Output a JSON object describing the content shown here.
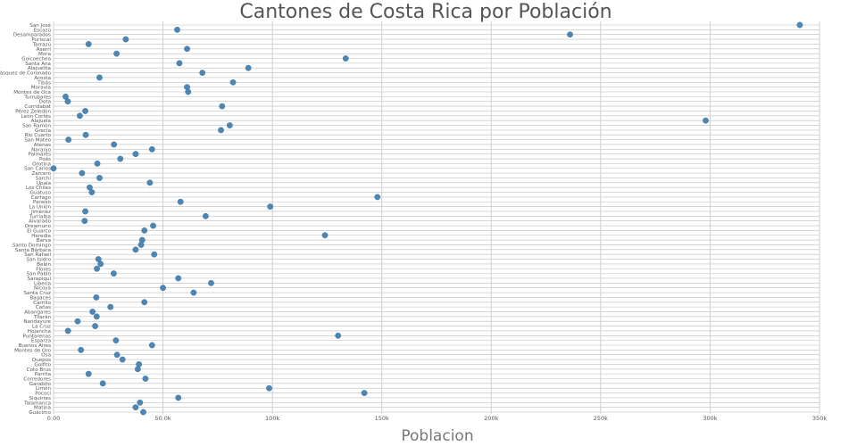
{
  "chart_data": {
    "type": "scatter",
    "title": "Cantones de Costa Rica por Población",
    "xlabel": "Poblacion",
    "ylabel": "",
    "xlim": [
      0,
      350000
    ],
    "x_ticks": [
      0,
      50000,
      100000,
      150000,
      200000,
      250000,
      300000,
      350000
    ],
    "x_tick_labels": [
      "0.00",
      "50.0k",
      "100k",
      "150k",
      "200k",
      "250k",
      "300k",
      "350k"
    ],
    "grid": true,
    "legend": "none",
    "marker_color": "#4d86b4",
    "categories": [
      "San José",
      "Escazú",
      "Desamparados",
      "Puriscal",
      "Tarrazú",
      "Aserrí",
      "Mora",
      "Goicoechea",
      "Santa Ana",
      "Alajuelita",
      "Vásquez de Coronado",
      "Acosta",
      "Tibás",
      "Moravia",
      "Montes de Oca",
      "Turrubares",
      "Dota",
      "Curridabat",
      "Pérez Zeledón",
      "León Cortés",
      "Alajuela",
      "San Ramón",
      "Grecia",
      "Río Cuarto",
      "San Mateo",
      "Atenas",
      "Naranjo",
      "Palmares",
      "Poás",
      "Orotina",
      "San Carlos",
      "Zarcero",
      "Sarchí",
      "Upala",
      "Los Chiles",
      "Guatuso",
      "Cartago",
      "Paraíso",
      "La Unión",
      "Jiménez",
      "Turrialba",
      "Alvarado",
      "Oreamuno",
      "El Guarco",
      "Heredia",
      "Barva",
      "Santo Domingo",
      "Santa Bárbara",
      "San Rafael",
      "San Isidro",
      "Belén",
      "Flores",
      "San Pablo",
      "Sarapiquí",
      "Liberia",
      "Nicoya",
      "Santa Cruz",
      "Bagaces",
      "Carrillo",
      "Cañas",
      "Abangares",
      "Tilarán",
      "Nandayure",
      "La Cruz",
      "Hojancha",
      "Puntarenas",
      "Esparza",
      "Buenos Aires",
      "Montes de Oro",
      "Osa",
      "Quepos",
      "Golfito",
      "Coto Brus",
      "Parrita",
      "Corredores",
      "Garabito",
      "Limón",
      "Pococí",
      "Siquirres",
      "Talamanca",
      "Matina",
      "Guácimo"
    ],
    "values": [
      341000,
      56500,
      236000,
      33000,
      16000,
      61000,
      28800,
      133500,
      57500,
      89000,
      68000,
      21000,
      82000,
      61000,
      61500,
      5500,
      6500,
      77000,
      14500,
      12000,
      298000,
      80500,
      76500,
      14700,
      6800,
      27600,
      45000,
      37500,
      30500,
      20000,
      0,
      13000,
      21000,
      44000,
      16500,
      17500,
      148000,
      58000,
      99000,
      14500,
      69500,
      14200,
      45500,
      41500,
      124000,
      40500,
      40000,
      37500,
      46000,
      20500,
      21500,
      19800,
      27500,
      57000,
      72000,
      50000,
      64000,
      19500,
      41500,
      26000,
      17800,
      19700,
      11000,
      19000,
      6600,
      130000,
      28500,
      45000,
      12500,
      29000,
      31500,
      39000,
      38500,
      16000,
      42000,
      22500,
      98500,
      142000,
      57000,
      39500,
      37500,
      41000
    ]
  }
}
